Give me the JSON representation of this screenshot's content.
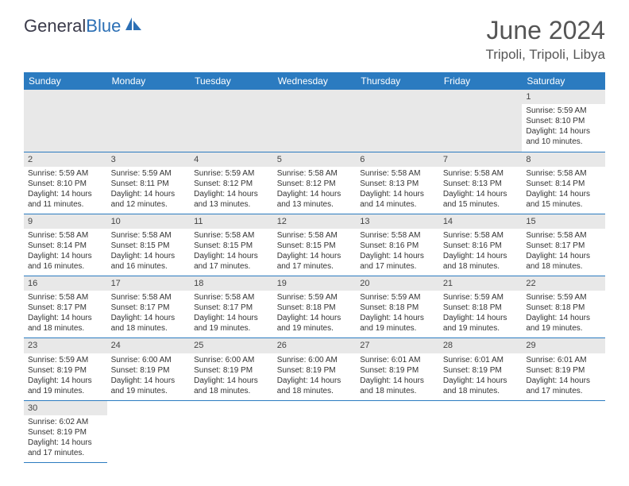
{
  "logo": {
    "part1": "General",
    "part2": "Blue"
  },
  "title": "June 2024",
  "location": "Tripoli, Tripoli, Libya",
  "colors": {
    "header_bg": "#2b7bc0",
    "header_text": "#ffffff",
    "daynum_bg": "#e8e8e8",
    "border": "#2b7bc0"
  },
  "weekdays": [
    "Sunday",
    "Monday",
    "Tuesday",
    "Wednesday",
    "Thursday",
    "Friday",
    "Saturday"
  ],
  "weeks": [
    [
      null,
      null,
      null,
      null,
      null,
      null,
      {
        "d": "1",
        "sr": "Sunrise: 5:59 AM",
        "ss": "Sunset: 8:10 PM",
        "dl1": "Daylight: 14 hours",
        "dl2": "and 10 minutes."
      }
    ],
    [
      {
        "d": "2",
        "sr": "Sunrise: 5:59 AM",
        "ss": "Sunset: 8:10 PM",
        "dl1": "Daylight: 14 hours",
        "dl2": "and 11 minutes."
      },
      {
        "d": "3",
        "sr": "Sunrise: 5:59 AM",
        "ss": "Sunset: 8:11 PM",
        "dl1": "Daylight: 14 hours",
        "dl2": "and 12 minutes."
      },
      {
        "d": "4",
        "sr": "Sunrise: 5:59 AM",
        "ss": "Sunset: 8:12 PM",
        "dl1": "Daylight: 14 hours",
        "dl2": "and 13 minutes."
      },
      {
        "d": "5",
        "sr": "Sunrise: 5:58 AM",
        "ss": "Sunset: 8:12 PM",
        "dl1": "Daylight: 14 hours",
        "dl2": "and 13 minutes."
      },
      {
        "d": "6",
        "sr": "Sunrise: 5:58 AM",
        "ss": "Sunset: 8:13 PM",
        "dl1": "Daylight: 14 hours",
        "dl2": "and 14 minutes."
      },
      {
        "d": "7",
        "sr": "Sunrise: 5:58 AM",
        "ss": "Sunset: 8:13 PM",
        "dl1": "Daylight: 14 hours",
        "dl2": "and 15 minutes."
      },
      {
        "d": "8",
        "sr": "Sunrise: 5:58 AM",
        "ss": "Sunset: 8:14 PM",
        "dl1": "Daylight: 14 hours",
        "dl2": "and 15 minutes."
      }
    ],
    [
      {
        "d": "9",
        "sr": "Sunrise: 5:58 AM",
        "ss": "Sunset: 8:14 PM",
        "dl1": "Daylight: 14 hours",
        "dl2": "and 16 minutes."
      },
      {
        "d": "10",
        "sr": "Sunrise: 5:58 AM",
        "ss": "Sunset: 8:15 PM",
        "dl1": "Daylight: 14 hours",
        "dl2": "and 16 minutes."
      },
      {
        "d": "11",
        "sr": "Sunrise: 5:58 AM",
        "ss": "Sunset: 8:15 PM",
        "dl1": "Daylight: 14 hours",
        "dl2": "and 17 minutes."
      },
      {
        "d": "12",
        "sr": "Sunrise: 5:58 AM",
        "ss": "Sunset: 8:15 PM",
        "dl1": "Daylight: 14 hours",
        "dl2": "and 17 minutes."
      },
      {
        "d": "13",
        "sr": "Sunrise: 5:58 AM",
        "ss": "Sunset: 8:16 PM",
        "dl1": "Daylight: 14 hours",
        "dl2": "and 17 minutes."
      },
      {
        "d": "14",
        "sr": "Sunrise: 5:58 AM",
        "ss": "Sunset: 8:16 PM",
        "dl1": "Daylight: 14 hours",
        "dl2": "and 18 minutes."
      },
      {
        "d": "15",
        "sr": "Sunrise: 5:58 AM",
        "ss": "Sunset: 8:17 PM",
        "dl1": "Daylight: 14 hours",
        "dl2": "and 18 minutes."
      }
    ],
    [
      {
        "d": "16",
        "sr": "Sunrise: 5:58 AM",
        "ss": "Sunset: 8:17 PM",
        "dl1": "Daylight: 14 hours",
        "dl2": "and 18 minutes."
      },
      {
        "d": "17",
        "sr": "Sunrise: 5:58 AM",
        "ss": "Sunset: 8:17 PM",
        "dl1": "Daylight: 14 hours",
        "dl2": "and 18 minutes."
      },
      {
        "d": "18",
        "sr": "Sunrise: 5:58 AM",
        "ss": "Sunset: 8:17 PM",
        "dl1": "Daylight: 14 hours",
        "dl2": "and 19 minutes."
      },
      {
        "d": "19",
        "sr": "Sunrise: 5:59 AM",
        "ss": "Sunset: 8:18 PM",
        "dl1": "Daylight: 14 hours",
        "dl2": "and 19 minutes."
      },
      {
        "d": "20",
        "sr": "Sunrise: 5:59 AM",
        "ss": "Sunset: 8:18 PM",
        "dl1": "Daylight: 14 hours",
        "dl2": "and 19 minutes."
      },
      {
        "d": "21",
        "sr": "Sunrise: 5:59 AM",
        "ss": "Sunset: 8:18 PM",
        "dl1": "Daylight: 14 hours",
        "dl2": "and 19 minutes."
      },
      {
        "d": "22",
        "sr": "Sunrise: 5:59 AM",
        "ss": "Sunset: 8:18 PM",
        "dl1": "Daylight: 14 hours",
        "dl2": "and 19 minutes."
      }
    ],
    [
      {
        "d": "23",
        "sr": "Sunrise: 5:59 AM",
        "ss": "Sunset: 8:19 PM",
        "dl1": "Daylight: 14 hours",
        "dl2": "and 19 minutes."
      },
      {
        "d": "24",
        "sr": "Sunrise: 6:00 AM",
        "ss": "Sunset: 8:19 PM",
        "dl1": "Daylight: 14 hours",
        "dl2": "and 19 minutes."
      },
      {
        "d": "25",
        "sr": "Sunrise: 6:00 AM",
        "ss": "Sunset: 8:19 PM",
        "dl1": "Daylight: 14 hours",
        "dl2": "and 18 minutes."
      },
      {
        "d": "26",
        "sr": "Sunrise: 6:00 AM",
        "ss": "Sunset: 8:19 PM",
        "dl1": "Daylight: 14 hours",
        "dl2": "and 18 minutes."
      },
      {
        "d": "27",
        "sr": "Sunrise: 6:01 AM",
        "ss": "Sunset: 8:19 PM",
        "dl1": "Daylight: 14 hours",
        "dl2": "and 18 minutes."
      },
      {
        "d": "28",
        "sr": "Sunrise: 6:01 AM",
        "ss": "Sunset: 8:19 PM",
        "dl1": "Daylight: 14 hours",
        "dl2": "and 18 minutes."
      },
      {
        "d": "29",
        "sr": "Sunrise: 6:01 AM",
        "ss": "Sunset: 8:19 PM",
        "dl1": "Daylight: 14 hours",
        "dl2": "and 17 minutes."
      }
    ],
    [
      {
        "d": "30",
        "sr": "Sunrise: 6:02 AM",
        "ss": "Sunset: 8:19 PM",
        "dl1": "Daylight: 14 hours",
        "dl2": "and 17 minutes."
      },
      null,
      null,
      null,
      null,
      null,
      null
    ]
  ]
}
